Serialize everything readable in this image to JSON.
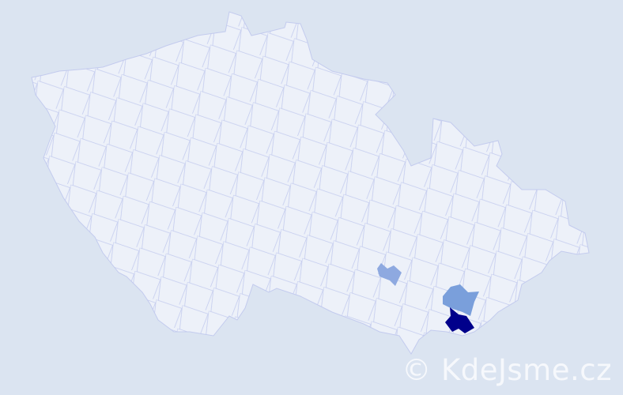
{
  "map": {
    "background_color": "#dbe4f1",
    "land_color": "#edf1f9",
    "border_color": "#c3cbee",
    "highlighted_regions": [
      {
        "level": "low",
        "color": "#8ea9e0"
      },
      {
        "level": "medium",
        "color": "#7a9fdb"
      },
      {
        "level": "high",
        "color": "#00008b"
      }
    ]
  },
  "watermark": "© KdeJsme.cz"
}
